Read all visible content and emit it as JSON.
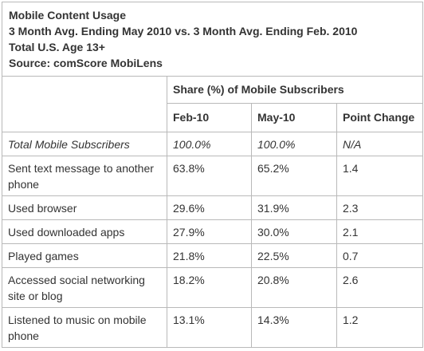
{
  "header": {
    "title": "Mobile Content Usage",
    "subtitle": "3 Month Avg. Ending May 2010 vs. 3 Month Avg. Ending Feb. 2010",
    "audience": "Total U.S. Age 13+",
    "source": "Source: comScore MobiLens"
  },
  "table": {
    "group_header": "Share (%) of Mobile Subscribers",
    "columns": [
      "Feb-10",
      "May-10",
      "Point Change"
    ],
    "rows": [
      {
        "label": "Total Mobile Subscribers",
        "feb": "100.0%",
        "may": "100.0%",
        "change": "N/A",
        "italic": true
      },
      {
        "label": "Sent text message to another phone",
        "feb": "63.8%",
        "may": "65.2%",
        "change": "1.4"
      },
      {
        "label": "Used browser",
        "feb": "29.6%",
        "may": "31.9%",
        "change": "2.3"
      },
      {
        "label": "Used downloaded apps",
        "feb": "27.9%",
        "may": "30.0%",
        "change": "2.1"
      },
      {
        "label": "Played games",
        "feb": "21.8%",
        "may": "22.5%",
        "change": "0.7"
      },
      {
        "label": "Accessed social networking site or blog",
        "feb": "18.2%",
        "may": "20.8%",
        "change": "2.6"
      },
      {
        "label": "Listened to music on mobile phone",
        "feb": "13.1%",
        "may": "14.3%",
        "change": "1.2"
      }
    ]
  }
}
